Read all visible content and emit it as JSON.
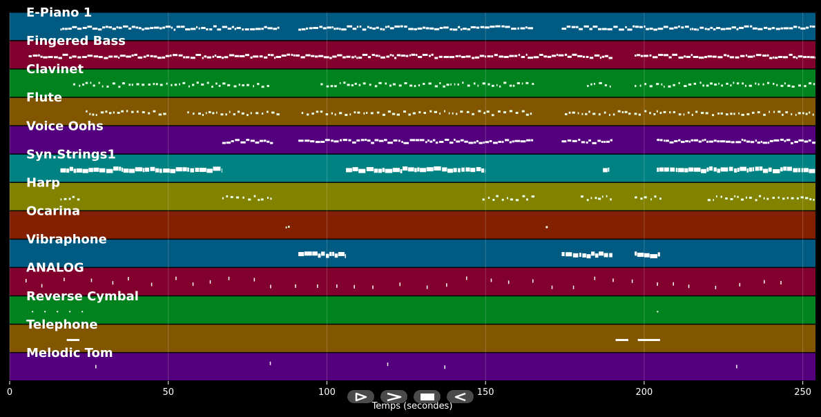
{
  "chart_data": {
    "type": "piano-roll",
    "xlabel": "Temps (secondes)",
    "xlim": [
      0,
      254
    ],
    "x_ticks": [
      0,
      50,
      100,
      150,
      200,
      250
    ],
    "grid": true,
    "tracks": [
      {
        "name": "E-Piano 1",
        "color": "#005a82",
        "segments": [
          [
            16,
            85
          ],
          [
            91,
            165
          ],
          [
            174,
            254
          ]
        ],
        "density": "dense",
        "thick": false
      },
      {
        "name": "Fingered Bass",
        "color": "#82002e",
        "segments": [
          [
            6,
            190
          ],
          [
            197,
            254
          ]
        ],
        "density": "dense",
        "thick": false
      },
      {
        "name": "Clavinet",
        "color": "#00821e",
        "segments": [
          [
            20,
            82
          ],
          [
            98,
            165
          ],
          [
            182,
            190
          ],
          [
            197,
            254
          ]
        ],
        "density": "sparse",
        "thick": false
      },
      {
        "name": "Flute",
        "color": "#825600",
        "segments": [
          [
            24,
            50
          ],
          [
            56,
            85
          ],
          [
            92,
            165
          ],
          [
            175,
            254
          ]
        ],
        "density": "sparse",
        "thick": false
      },
      {
        "name": "Voice Oohs",
        "color": "#54007e",
        "segments": [
          [
            67,
            83
          ],
          [
            91,
            165
          ],
          [
            174,
            190
          ],
          [
            204,
            254
          ]
        ],
        "density": "dense",
        "thick": false
      },
      {
        "name": "Syn.Strings1",
        "color": "#008282",
        "segments": [
          [
            16,
            67
          ],
          [
            106,
            150
          ],
          [
            187,
            189
          ],
          [
            204,
            254
          ]
        ],
        "density": "dense",
        "thick": true
      },
      {
        "name": "Harp",
        "color": "#828200",
        "segments": [
          [
            16,
            22
          ],
          [
            67,
            83
          ],
          [
            149,
            165
          ],
          [
            180,
            190
          ],
          [
            197,
            205
          ],
          [
            220,
            254
          ]
        ],
        "density": "sparse",
        "thick": false
      },
      {
        "name": "Ocarina",
        "color": "#822000",
        "segments": [
          [
            87,
            88
          ],
          [
            169,
            170
          ]
        ],
        "density": "sparse",
        "thick": false
      },
      {
        "name": "Vibraphone",
        "color": "#005a82",
        "segments": [
          [
            91,
            106
          ],
          [
            174,
            190
          ],
          [
            197,
            205
          ]
        ],
        "density": "dense",
        "thick": true
      },
      {
        "name": "ANALOG",
        "color": "#82002e",
        "segments": [
          [
            5,
            245
          ]
        ],
        "density": "ticks",
        "thick": false
      },
      {
        "name": "Reverse Cymbal",
        "color": "#00821e",
        "segments": [
          [
            7,
            25
          ],
          [
            204,
            205
          ]
        ],
        "density": "dots",
        "thick": false
      },
      {
        "name": "Telephone",
        "color": "#825600",
        "segments": [
          [
            18,
            22
          ],
          [
            191,
            195
          ],
          [
            198,
            205
          ]
        ],
        "density": "dash",
        "thick": false
      },
      {
        "name": "Melodic Tom",
        "color": "#54007e",
        "segments": [
          [
            27,
            28
          ],
          [
            82,
            83
          ],
          [
            119,
            120
          ],
          [
            137,
            138
          ],
          [
            229,
            230
          ]
        ],
        "density": "ticks",
        "thick": false
      }
    ]
  },
  "controls": [
    {
      "name": "play-button",
      "icon": "play-icon"
    },
    {
      "name": "forward-button",
      "icon": "forward-icon"
    },
    {
      "name": "stop-button",
      "icon": "stop-icon"
    },
    {
      "name": "rewind-button",
      "icon": "rewind-icon"
    }
  ]
}
